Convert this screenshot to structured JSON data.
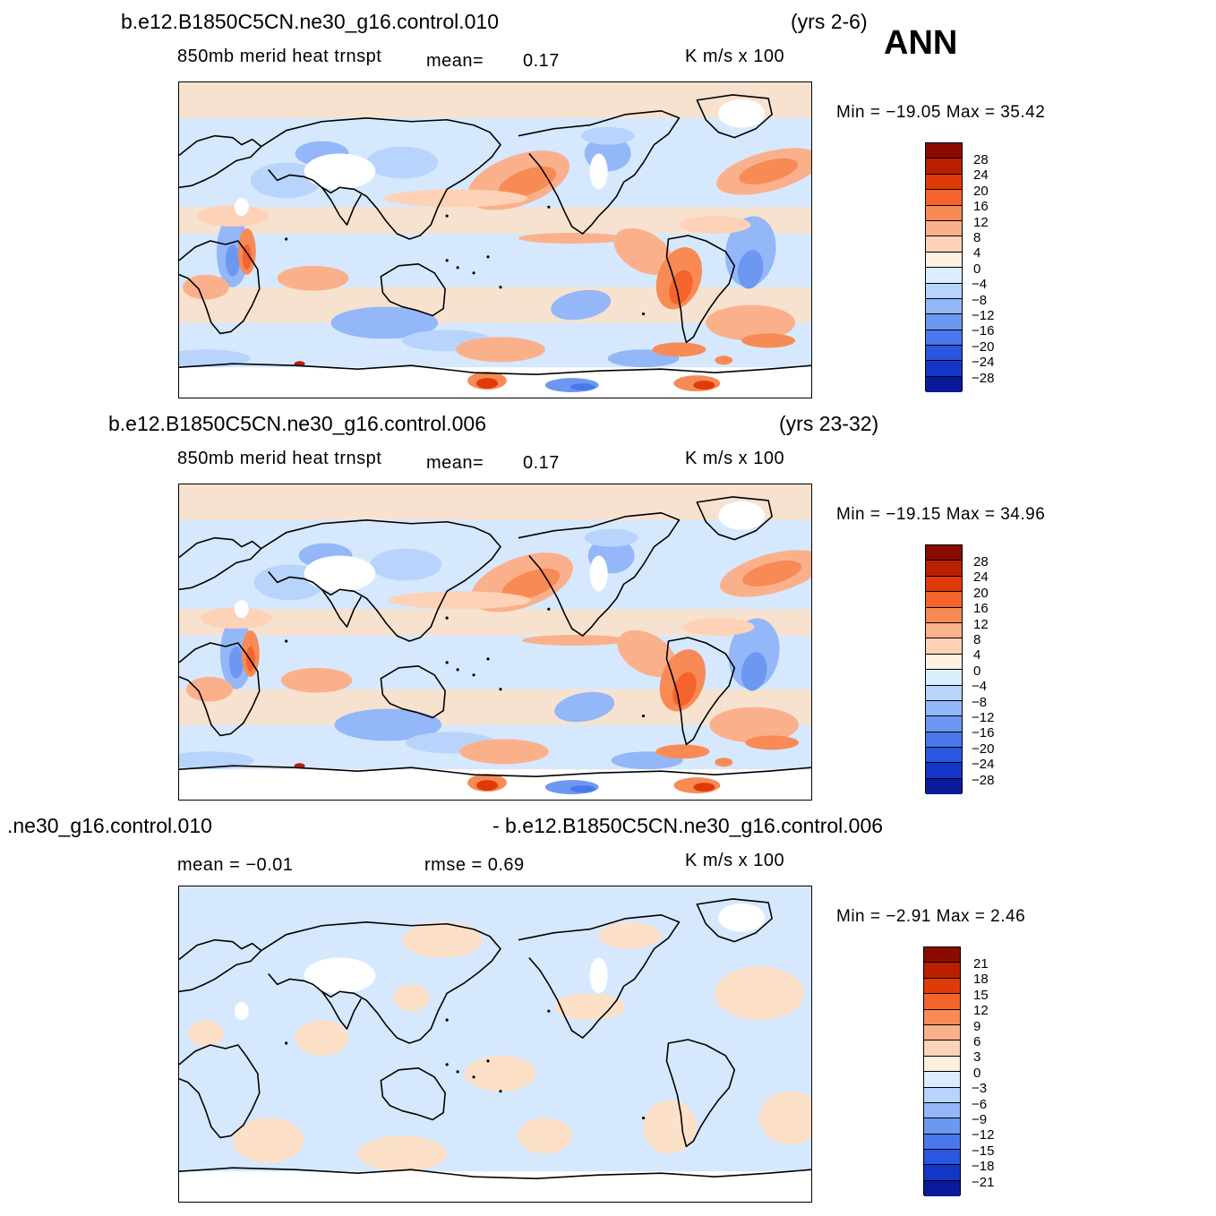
{
  "season": "ANN",
  "panels": [
    {
      "case": "b.e12.B1850C5CN.ne30_g16.control.010",
      "years": "(yrs 2-6)",
      "variable": "850mb  merid  heat  trnspt",
      "mean_label": "mean=",
      "mean_value": "0.17",
      "units": "K  m/s  x  100",
      "minmax": "Min  =  −19.05  Max  =    35.42",
      "levels": [
        "28",
        "24",
        "20",
        "16",
        "12",
        "8",
        "4",
        "0",
        "−4",
        "−8",
        "−12",
        "−16",
        "−20",
        "−24",
        "−28"
      ]
    },
    {
      "case": "b.e12.B1850C5CN.ne30_g16.control.006",
      "years": "(yrs 23-32)",
      "variable": "850mb  merid  heat  trnspt",
      "mean_label": "mean=",
      "mean_value": "0.17",
      "units": "K  m/s  x  100",
      "minmax": "Min  =  −19.15  Max  =    34.96",
      "levels": [
        "28",
        "24",
        "20",
        "16",
        "12",
        "8",
        "4",
        "0",
        "−4",
        "−8",
        "−12",
        "−16",
        "−20",
        "−24",
        "−28"
      ]
    },
    {
      "case_left": ".ne30_g16.control.010",
      "case_right": "- b.e12.B1850C5CN.ne30_g16.control.006",
      "mean_text": "mean  =   −0.01",
      "rmse_text": "rmse  =     0.69",
      "units": "K  m/s  x  100",
      "minmax": "Min  =     −2.91  Max  =      2.46",
      "levels": [
        "21",
        "18",
        "15",
        "12",
        "9",
        "6",
        "3",
        "0",
        "−3",
        "−6",
        "−9",
        "−12",
        "−15",
        "−18",
        "−21"
      ]
    }
  ],
  "colors": {
    "scale": [
      "#8b0a00",
      "#b92000",
      "#e03a08",
      "#f4642c",
      "#f88a55",
      "#fbb08c",
      "#fdd2b6",
      "#fff0e2",
      "#dbeeff",
      "#b8d4fc",
      "#93b7f8",
      "#6d98f2",
      "#4a78ec",
      "#2a56e0",
      "#1436c8",
      "#0a1a9a"
    ],
    "ocean_neutral": "#d6e8fd",
    "warm_light": "#fde0c8",
    "land_outline": "#000000"
  },
  "chart_data": [
    {
      "type": "heatmap",
      "title": "b.e12.B1850C5CN.ne30_g16.control.010 (yrs 2-6) ANN",
      "variable": "850mb merid heat trnspt",
      "units": "K m/s x 100",
      "mean": 0.17,
      "min": -19.05,
      "max": 35.42,
      "contour_levels": [
        -28,
        -24,
        -20,
        -16,
        -12,
        -8,
        -4,
        0,
        4,
        8,
        12,
        16,
        20,
        24,
        28
      ]
    },
    {
      "type": "heatmap",
      "title": "b.e12.B1850C5CN.ne30_g16.control.006 (yrs 23-32)",
      "variable": "850mb merid heat trnspt",
      "units": "K m/s x 100",
      "mean": 0.17,
      "min": -19.15,
      "max": 34.96,
      "contour_levels": [
        -28,
        -24,
        -20,
        -16,
        -12,
        -8,
        -4,
        0,
        4,
        8,
        12,
        16,
        20,
        24,
        28
      ]
    },
    {
      "type": "heatmap",
      "title": "control.010 - control.006",
      "units": "K m/s x 100",
      "mean": -0.01,
      "rmse": 0.69,
      "min": -2.91,
      "max": 2.46,
      "contour_levels": [
        -21,
        -18,
        -15,
        -12,
        -9,
        -6,
        -3,
        0,
        3,
        6,
        9,
        12,
        15,
        18,
        21
      ]
    }
  ]
}
